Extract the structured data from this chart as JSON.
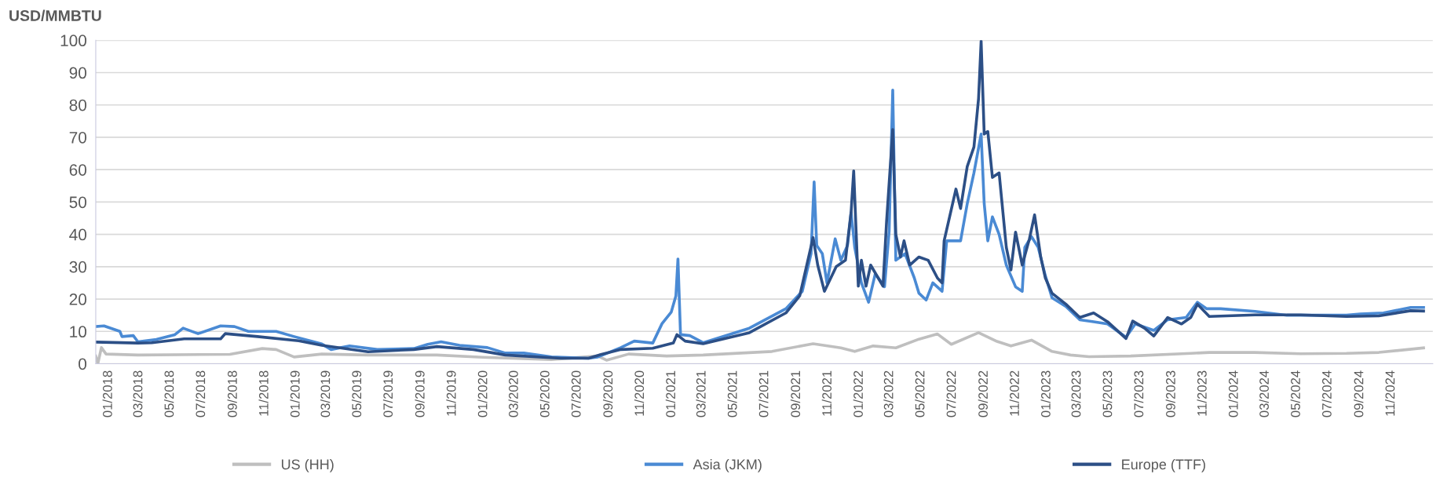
{
  "chart_data": {
    "type": "line",
    "ylabel": "USD/MMBTU",
    "xlim": [
      "2017-12-07",
      "2025-01-21"
    ],
    "ylim": [
      0,
      100
    ],
    "yticks": [
      0,
      10,
      20,
      30,
      40,
      50,
      60,
      70,
      80,
      90,
      100
    ],
    "xticks": [
      {
        "value": "2018-01-01",
        "label": "01/2018"
      },
      {
        "value": "2018-03-01",
        "label": "03/2018"
      },
      {
        "value": "2018-05-01",
        "label": "05/2018"
      },
      {
        "value": "2018-07-01",
        "label": "07/2018"
      },
      {
        "value": "2018-09-01",
        "label": "09/2018"
      },
      {
        "value": "2018-11-01",
        "label": "11/2018"
      },
      {
        "value": "2019-01-01",
        "label": "01/2019"
      },
      {
        "value": "2019-03-01",
        "label": "03/2019"
      },
      {
        "value": "2019-05-01",
        "label": "05/2019"
      },
      {
        "value": "2019-07-01",
        "label": "07/2019"
      },
      {
        "value": "2019-09-01",
        "label": "09/2019"
      },
      {
        "value": "2019-11-01",
        "label": "11/2019"
      },
      {
        "value": "2020-01-01",
        "label": "01/2020"
      },
      {
        "value": "2020-03-01",
        "label": "03/2020"
      },
      {
        "value": "2020-05-01",
        "label": "05/2020"
      },
      {
        "value": "2020-07-01",
        "label": "07/2020"
      },
      {
        "value": "2020-09-01",
        "label": "09/2020"
      },
      {
        "value": "2020-11-01",
        "label": "11/2020"
      },
      {
        "value": "2021-01-01",
        "label": "01/2021"
      },
      {
        "value": "2021-03-01",
        "label": "03/2021"
      },
      {
        "value": "2021-05-01",
        "label": "05/2021"
      },
      {
        "value": "2021-07-01",
        "label": "07/2021"
      },
      {
        "value": "2021-09-01",
        "label": "09/2021"
      },
      {
        "value": "2021-11-01",
        "label": "11/2021"
      },
      {
        "value": "2022-01-01",
        "label": "01/2022"
      },
      {
        "value": "2022-03-01",
        "label": "03/2022"
      },
      {
        "value": "2022-05-01",
        "label": "05/2022"
      },
      {
        "value": "2022-07-01",
        "label": "07/2022"
      },
      {
        "value": "2022-09-01",
        "label": "09/2022"
      },
      {
        "value": "2022-11-01",
        "label": "11/2022"
      },
      {
        "value": "2023-01-01",
        "label": "01/2023"
      },
      {
        "value": "2023-03-01",
        "label": "03/2023"
      },
      {
        "value": "2023-05-01",
        "label": "05/2023"
      },
      {
        "value": "2023-07-01",
        "label": "07/2023"
      },
      {
        "value": "2023-09-01",
        "label": "09/2023"
      },
      {
        "value": "2023-11-01",
        "label": "11/2023"
      },
      {
        "value": "2024-01-01",
        "label": "01/2024"
      },
      {
        "value": "2024-03-01",
        "label": "03/2024"
      },
      {
        "value": "2024-05-01",
        "label": "05/2024"
      },
      {
        "value": "2024-07-01",
        "label": "07/2024"
      },
      {
        "value": "2024-09-01",
        "label": "09/2024"
      },
      {
        "value": "2024-11-01",
        "label": "11/2024"
      }
    ],
    "grid": "y",
    "legend": "bottom",
    "marker": "none",
    "line_style": "solid",
    "series": [
      {
        "name": "US (HH)",
        "color": "#bfbfbf",
        "x": [
          "2017-12-07",
          "2017-12-11",
          "2017-12-18",
          "2017-12-27",
          "2018-02-27",
          "2018-08-25",
          "2018-10-27",
          "2018-11-23",
          "2018-12-28",
          "2019-02-20",
          "2019-05-21",
          "2019-10-02",
          "2019-12-30",
          "2020-05-12",
          "2020-08-10",
          "2020-08-27",
          "2020-10-09",
          "2020-12-22",
          "2021-03-03",
          "2021-07-15",
          "2021-10-03",
          "2021-11-26",
          "2021-12-23",
          "2022-01-28",
          "2022-03-13",
          "2022-04-27",
          "2022-06-02",
          "2022-06-29",
          "2022-08-21",
          "2022-09-26",
          "2022-10-23",
          "2022-12-02",
          "2023-01-11",
          "2023-02-16",
          "2023-03-24",
          "2023-06-13",
          "2023-10-08",
          "2023-11-13",
          "2024-02-10",
          "2024-05-09",
          "2024-08-06",
          "2024-10-08",
          "2025-01-03"
        ],
        "values": [
          2.4,
          0,
          5,
          3,
          2.7,
          2.9,
          4.7,
          4.4,
          2.1,
          3,
          2.7,
          2.7,
          2,
          1.3,
          2.4,
          1.1,
          3,
          2.4,
          2.7,
          3.8,
          6.2,
          4.9,
          3.8,
          5.5,
          4.9,
          7.6,
          9.2,
          6,
          9.6,
          6.9,
          5.5,
          7.3,
          3.8,
          2.7,
          2.2,
          2.4,
          3.2,
          3.5,
          3.5,
          3.1,
          3.2,
          3.5,
          4.9
        ]
      },
      {
        "name": "Asia (JKM)",
        "color": "#4a8ad4",
        "x": [
          "2017-12-07",
          "2017-12-23",
          "2018-01-23",
          "2018-01-27",
          "2018-02-18",
          "2018-02-27",
          "2018-04-04",
          "2018-05-10",
          "2018-05-26",
          "2018-06-24",
          "2018-08-07",
          "2018-09-03",
          "2018-09-30",
          "2018-11-23",
          "2018-12-28",
          "2019-02-20",
          "2019-03-10",
          "2019-04-15",
          "2019-06-08",
          "2019-08-18",
          "2019-09-14",
          "2019-10-10",
          "2019-11-15",
          "2020-01-08",
          "2020-02-12",
          "2020-03-19",
          "2020-05-12",
          "2020-07-23",
          "2020-08-10",
          "2020-09-24",
          "2020-10-20",
          "2020-11-25",
          "2020-12-13",
          "2020-12-31",
          "2021-01-09",
          "2021-01-13",
          "2021-01-18",
          "2021-02-05",
          "2021-03-03",
          "2021-06-01",
          "2021-08-11",
          "2021-09-12",
          "2021-09-29",
          "2021-10-05",
          "2021-10-10",
          "2021-10-21",
          "2021-10-30",
          "2021-11-15",
          "2021-11-26",
          "2021-12-09",
          "2021-12-16",
          "2021-12-23",
          "2022-01-05",
          "2022-01-19",
          "2022-02-01",
          "2022-02-19",
          "2022-02-28",
          "2022-03-07",
          "2022-03-13",
          "2022-03-31",
          "2022-04-18",
          "2022-04-27",
          "2022-05-11",
          "2022-05-24",
          "2022-06-11",
          "2022-06-20",
          "2022-07-17",
          "2022-07-30",
          "2022-08-12",
          "2022-08-26",
          "2022-09-01",
          "2022-09-08",
          "2022-09-17",
          "2022-09-30",
          "2022-10-14",
          "2022-11-01",
          "2022-11-14",
          "2022-11-19",
          "2022-12-02",
          "2022-12-15",
          "2022-12-29",
          "2023-01-11",
          "2023-02-07",
          "2023-03-06",
          "2023-04-02",
          "2023-04-29",
          "2023-06-04",
          "2023-06-22",
          "2023-07-28",
          "2023-08-24",
          "2023-09-29",
          "2023-10-21",
          "2023-11-08",
          "2023-12-05",
          "2024-02-10",
          "2024-04-12",
          "2024-08-06",
          "2024-09-02",
          "2024-10-17",
          "2024-12-09",
          "2025-01-03"
        ],
        "values": [
          11.5,
          11.7,
          10,
          8.4,
          8.7,
          6.8,
          7.5,
          9,
          11,
          9.3,
          11.7,
          11.5,
          10,
          10,
          8.4,
          6.1,
          4.4,
          5.5,
          4.4,
          4.7,
          6,
          6.8,
          5.7,
          5,
          3.3,
          3.3,
          2.1,
          1.7,
          2.1,
          5,
          7,
          6.4,
          12.4,
          16,
          21,
          32.4,
          9,
          8.7,
          6.5,
          11,
          17,
          22.4,
          34,
          56.2,
          36.6,
          34,
          25,
          38.6,
          32,
          36.6,
          46.8,
          36,
          25,
          19,
          27.8,
          23.8,
          41,
          84.6,
          32,
          34,
          26.5,
          21.8,
          19.7,
          25,
          22.4,
          38,
          38,
          49.5,
          59,
          71,
          49.5,
          38,
          45.4,
          40,
          30.5,
          23.8,
          22.4,
          36,
          39.3,
          36,
          27.2,
          20.4,
          17.7,
          13.6,
          13,
          12.3,
          8.2,
          12.3,
          10.3,
          13.6,
          14.3,
          19,
          17,
          17,
          16.2,
          15,
          15,
          15.4,
          15.7,
          17.4,
          17.4
        ]
      },
      {
        "name": "Europe (TTF)",
        "color": "#2c4f86",
        "x": [
          "2017-12-07",
          "2018-02-27",
          "2018-03-26",
          "2018-05-28",
          "2018-08-07",
          "2018-08-16",
          "2018-10-18",
          "2019-01-06",
          "2019-02-20",
          "2019-05-21",
          "2019-08-18",
          "2019-10-02",
          "2019-12-12",
          "2020-02-12",
          "2020-05-30",
          "2020-07-23",
          "2020-08-19",
          "2020-09-24",
          "2020-11-25",
          "2021-01-04",
          "2021-01-11",
          "2021-01-27",
          "2021-03-03",
          "2021-06-01",
          "2021-08-11",
          "2021-09-07",
          "2021-10-03",
          "2021-10-12",
          "2021-10-25",
          "2021-11-17",
          "2021-12-05",
          "2021-12-16",
          "2021-12-21",
          "2021-12-30",
          "2022-01-05",
          "2022-01-14",
          "2022-01-23",
          "2022-02-16",
          "2022-02-23",
          "2022-03-07",
          "2022-03-13",
          "2022-03-22",
          "2022-03-29",
          "2022-04-09",
          "2022-04-27",
          "2022-05-15",
          "2022-06-02",
          "2022-06-11",
          "2022-06-15",
          "2022-07-08",
          "2022-07-17",
          "2022-07-30",
          "2022-08-12",
          "2022-08-21",
          "2022-08-26",
          "2022-09-01",
          "2022-09-08",
          "2022-09-17",
          "2022-09-30",
          "2022-10-14",
          "2022-10-23",
          "2022-11-01",
          "2022-11-14",
          "2022-11-28",
          "2022-12-08",
          "2022-12-20",
          "2022-12-29",
          "2023-01-11",
          "2023-02-07",
          "2023-03-06",
          "2023-04-02",
          "2023-04-29",
          "2023-06-04",
          "2023-06-17",
          "2023-07-10",
          "2023-07-28",
          "2023-08-24",
          "2023-09-20",
          "2023-10-08",
          "2023-10-21",
          "2023-11-13",
          "2024-02-10",
          "2024-05-09",
          "2024-08-06",
          "2024-10-08",
          "2024-12-09",
          "2025-01-03"
        ],
        "values": [
          6.7,
          6.4,
          6.5,
          7.7,
          7.7,
          9.3,
          8.4,
          7.1,
          5.7,
          3.7,
          4.4,
          5.3,
          4.4,
          2.7,
          1.7,
          1.7,
          3,
          4.4,
          4.8,
          6.4,
          9,
          7,
          6.2,
          9.6,
          15.7,
          21,
          39,
          30.5,
          22.4,
          30,
          32,
          47,
          59.6,
          24,
          32,
          24,
          30.5,
          24,
          44,
          72.4,
          40,
          33,
          38,
          30.5,
          33,
          32,
          26.5,
          25,
          38,
          54,
          48,
          61,
          67,
          82,
          99.7,
          71,
          71.8,
          57.6,
          59,
          36,
          29,
          40.7,
          30.5,
          38.6,
          46,
          33,
          26.5,
          21.8,
          18.4,
          14.3,
          15.7,
          13,
          7.8,
          13.2,
          11,
          8.6,
          14.3,
          12.3,
          14.3,
          18.4,
          14.6,
          15.1,
          15.1,
          14.6,
          14.8,
          16.4,
          16.3
        ]
      }
    ]
  }
}
